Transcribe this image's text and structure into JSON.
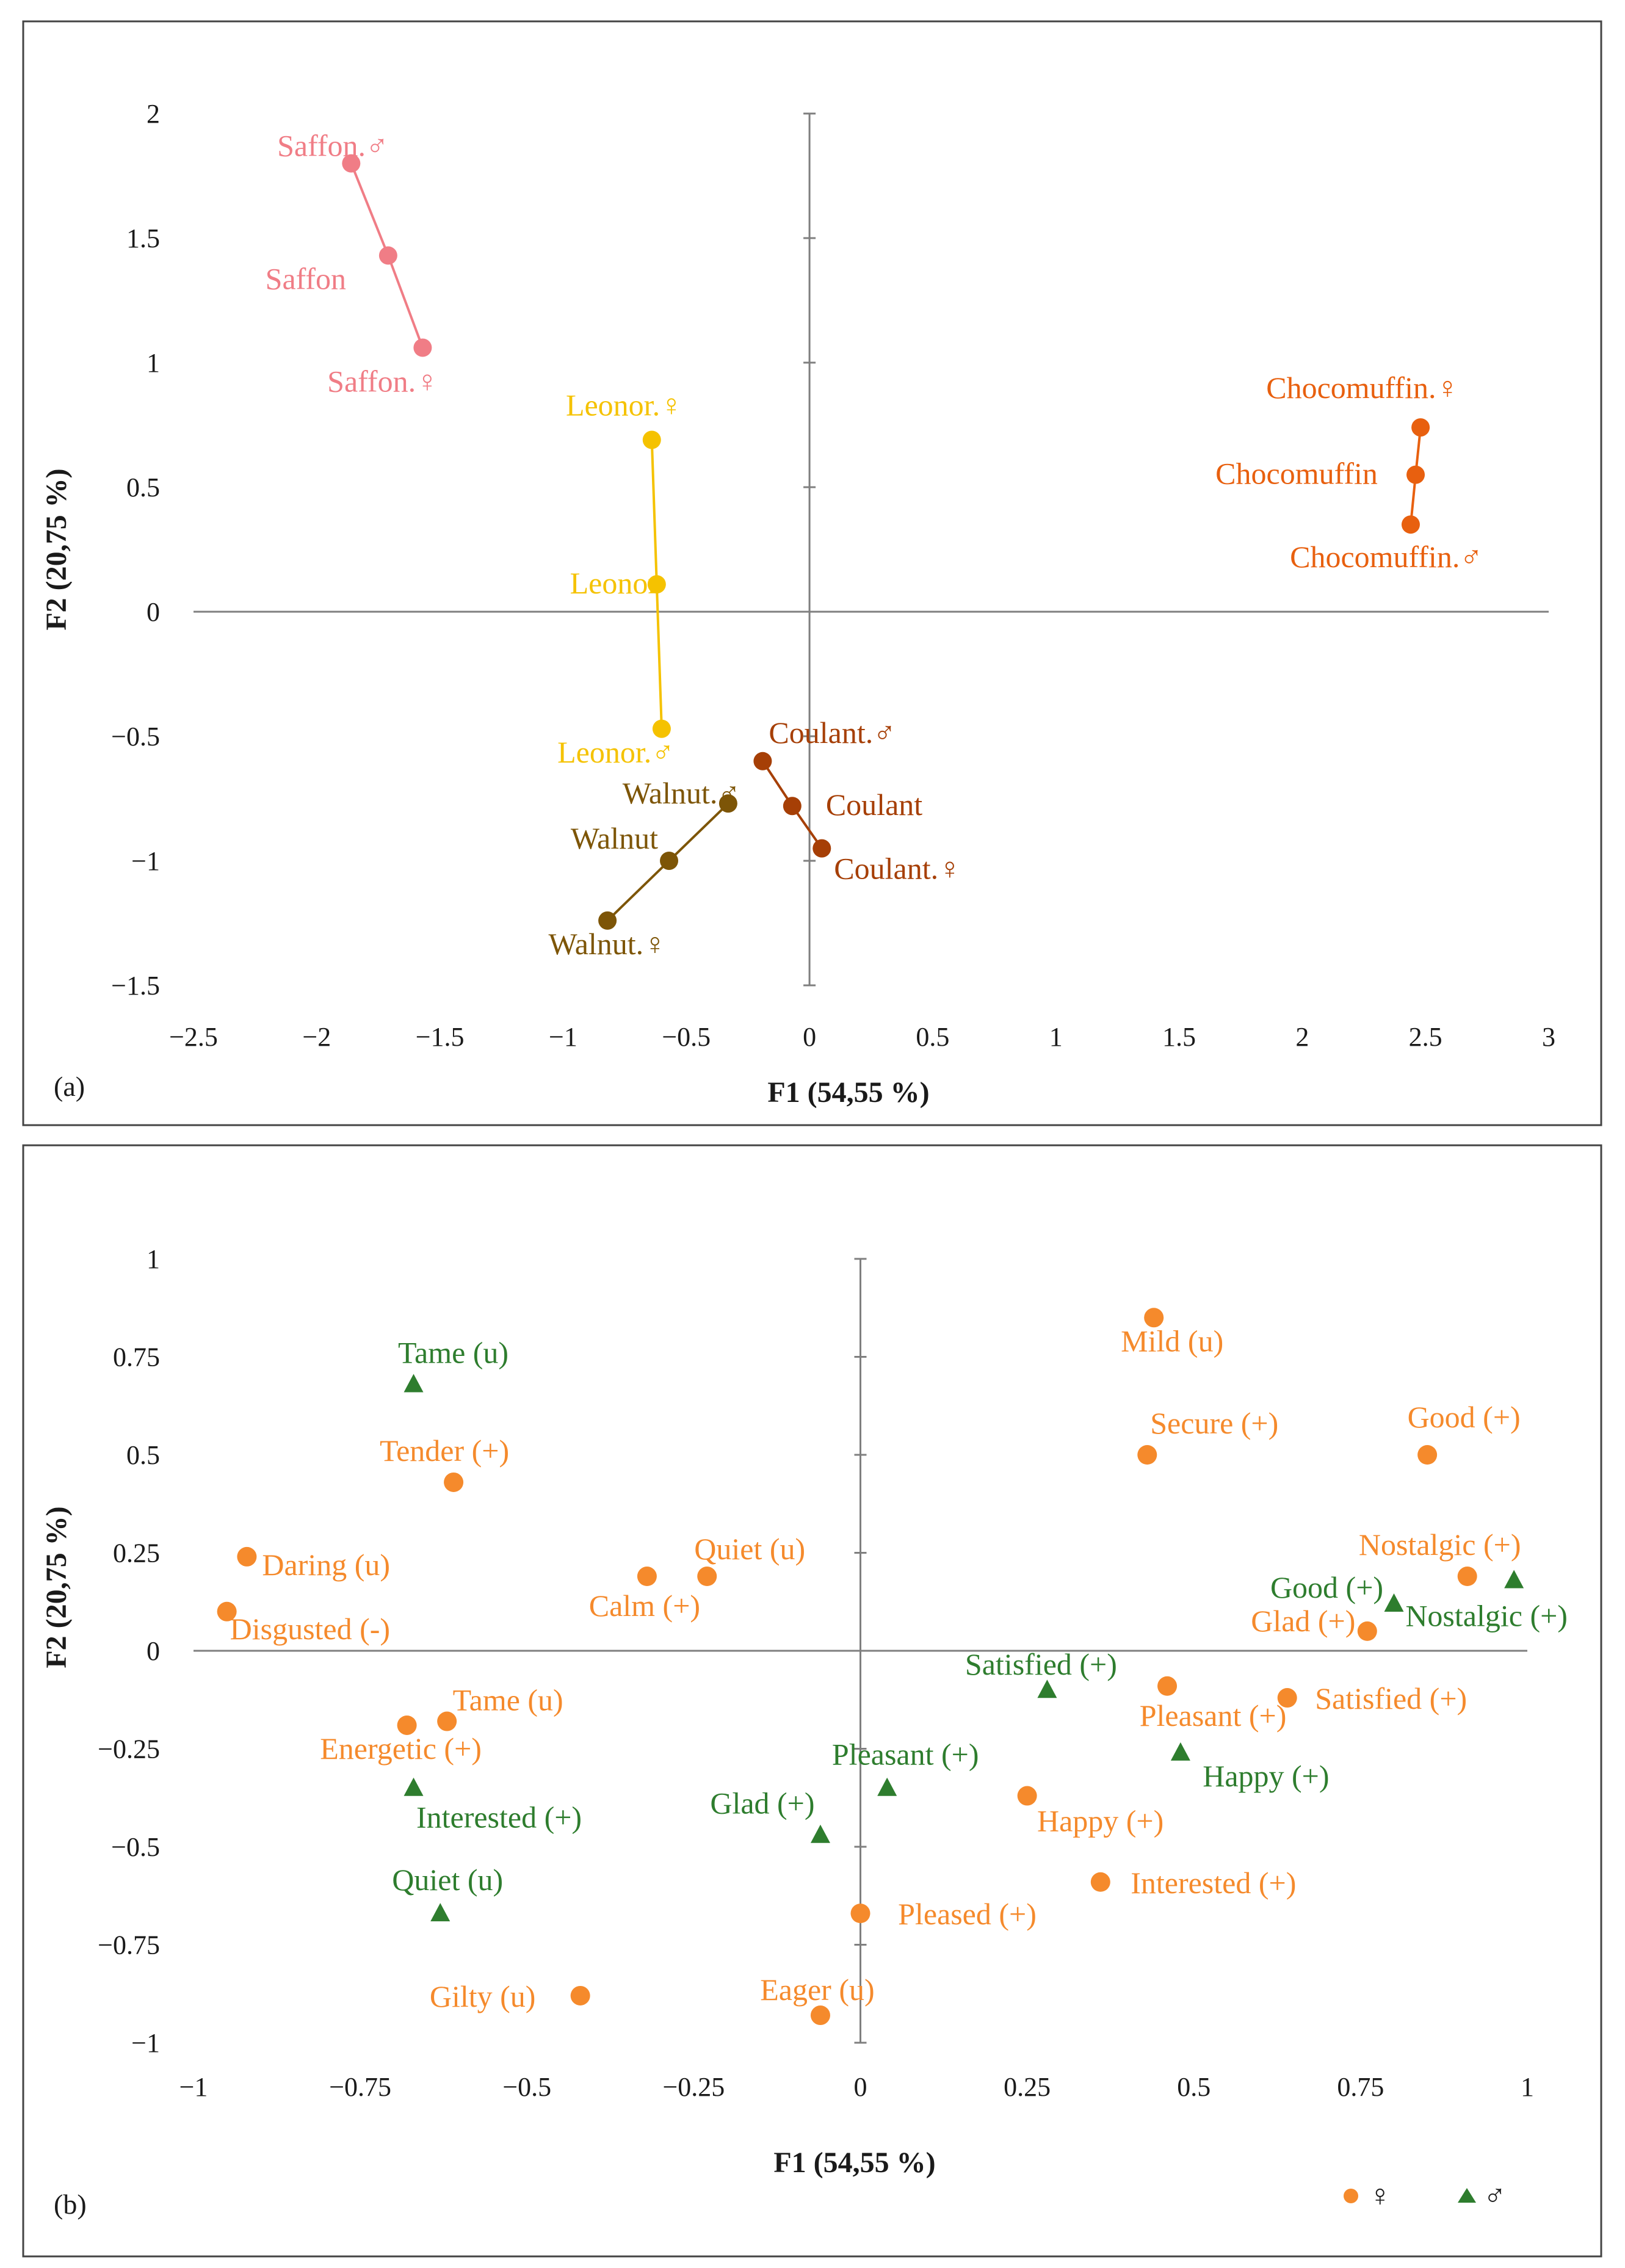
{
  "colors": {
    "saffon": "#f07d86",
    "leonor": "#f5c200",
    "choco": "#e8600f",
    "coulant": "#a63f06",
    "walnut": "#7d5507",
    "female_emotion": "#f58a2c",
    "male_emotion": "#2e7d2e",
    "axis": "#7f7f7f"
  },
  "chart_data": [
    {
      "type": "scatter",
      "panel_tag": "(a)",
      "title": "",
      "xlabel": "F1 (54,55 %)",
      "ylabel": "F2 (20,75 %)",
      "xlim": [
        -2.5,
        3
      ],
      "ylim": [
        -1.5,
        2
      ],
      "grid": false,
      "xticks": [
        "−2.5",
        "−2",
        "−1.5",
        "−1",
        "−0.5",
        "0",
        "0.5",
        "1",
        "1.5",
        "2",
        "2.5",
        "3"
      ],
      "yticks": [
        "−1.5",
        "−1",
        "−0.5",
        "0",
        "0.5",
        "1",
        "1.5",
        "2"
      ],
      "xtick_values": [
        -2.5,
        -2,
        -1.5,
        -1,
        -0.5,
        0,
        0.5,
        1,
        1.5,
        2,
        2.5,
        3
      ],
      "ytick_values": [
        -1.5,
        -1,
        -0.5,
        0,
        0.5,
        1,
        1.5,
        2
      ],
      "series": [
        {
          "name": "Saffon",
          "color_key": "saffon",
          "points": [
            {
              "label": "Saffon.♂",
              "x": -1.86,
              "y": 1.8
            },
            {
              "label": "Saffon",
              "x": -1.71,
              "y": 1.43
            },
            {
              "label": "Saffon.♀",
              "x": -1.57,
              "y": 1.06
            }
          ]
        },
        {
          "name": "Leonor",
          "color_key": "leonor",
          "points": [
            {
              "label": "Leonor.♀",
              "x": -0.64,
              "y": 0.69
            },
            {
              "label": "Leonor",
              "x": -0.62,
              "y": 0.11
            },
            {
              "label": "Leonor.♂",
              "x": -0.6,
              "y": -0.47
            }
          ]
        },
        {
          "name": "Chocomuffin",
          "color_key": "choco",
          "points": [
            {
              "label": "Chocomuffin.♀",
              "x": 2.48,
              "y": 0.74
            },
            {
              "label": "Chocomuffin",
              "x": 2.46,
              "y": 0.55
            },
            {
              "label": "Chocomuffin.♂",
              "x": 2.44,
              "y": 0.35
            }
          ]
        },
        {
          "name": "Coulant",
          "color_key": "coulant",
          "points": [
            {
              "label": "Coulant.♂",
              "x": -0.19,
              "y": -0.6
            },
            {
              "label": "Coulant",
              "x": -0.07,
              "y": -0.78
            },
            {
              "label": "Coulant.♀",
              "x": 0.05,
              "y": -0.95
            }
          ]
        },
        {
          "name": "Walnut",
          "color_key": "walnut",
          "points": [
            {
              "label": "Walnut.♂",
              "x": -0.33,
              "y": -0.77
            },
            {
              "label": "Walnut",
              "x": -0.57,
              "y": -1.0
            },
            {
              "label": "Walnut.♀",
              "x": -0.82,
              "y": -1.24
            }
          ]
        }
      ]
    },
    {
      "type": "scatter",
      "panel_tag": "(b)",
      "title": "",
      "xlabel": "F1 (54,55 %)",
      "ylabel": "F2 (20,75 %)",
      "xlim": [
        -1,
        1
      ],
      "ylim": [
        -1,
        1
      ],
      "grid": false,
      "xticks": [
        "−1",
        "−0.75",
        "−0.5",
        "−0.25",
        "0",
        "0.25",
        "0.5",
        "0.75",
        "1"
      ],
      "yticks": [
        "−1",
        "−0.75",
        "−0.5",
        "−0.25",
        "0",
        "0.25",
        "0.5",
        "0.75",
        "1"
      ],
      "xtick_values": [
        -1,
        -0.75,
        -0.5,
        -0.25,
        0,
        0.25,
        0.5,
        0.75,
        1
      ],
      "ytick_values": [
        -1,
        -0.75,
        -0.5,
        -0.25,
        0,
        0.25,
        0.5,
        0.75,
        1
      ],
      "legend": [
        {
          "symbol": "circle",
          "color_key": "female_emotion",
          "label": "♀"
        },
        {
          "symbol": "triangle",
          "color_key": "male_emotion",
          "label": "♂"
        }
      ],
      "legend_position": "bottom-right",
      "series": [
        {
          "name": "♀",
          "symbol": "circle",
          "color_key": "female_emotion",
          "points": [
            {
              "label": "Mild (u)",
              "x": 0.44,
              "y": 0.85
            },
            {
              "label": "Good (+)",
              "x": 0.85,
              "y": 0.5
            },
            {
              "label": "Secure (+)",
              "x": 0.43,
              "y": 0.5
            },
            {
              "label": "Tender (+)",
              "x": -0.61,
              "y": 0.43
            },
            {
              "label": "Daring (u)",
              "x": -0.92,
              "y": 0.24
            },
            {
              "label": "Quiet (u)",
              "x": -0.23,
              "y": 0.19
            },
            {
              "label": "Calm (+)",
              "x": -0.32,
              "y": 0.19
            },
            {
              "label": "Nostalgic (+)",
              "x": 0.91,
              "y": 0.19
            },
            {
              "label": "Disgusted (-)",
              "x": -0.95,
              "y": 0.1
            },
            {
              "label": "Glad (+)",
              "x": 0.76,
              "y": 0.05
            },
            {
              "label": "Satisfied (+)",
              "x": 0.64,
              "y": -0.12
            },
            {
              "label": "Pleasant (+)",
              "x": 0.46,
              "y": -0.09
            },
            {
              "label": "Tame (u)",
              "x": -0.62,
              "y": -0.18
            },
            {
              "label": "Energetic (+)",
              "x": -0.68,
              "y": -0.19
            },
            {
              "label": "Happy (+)",
              "x": 0.25,
              "y": -0.37
            },
            {
              "label": "Interested (+)",
              "x": 0.36,
              "y": -0.59
            },
            {
              "label": "Pleased (+)",
              "x": 0.0,
              "y": -0.67
            },
            {
              "label": "Gilty (u)",
              "x": -0.42,
              "y": -0.88
            },
            {
              "label": "Eager (u)",
              "x": -0.06,
              "y": -0.93
            }
          ]
        },
        {
          "name": "♂",
          "symbol": "triangle",
          "color_key": "male_emotion",
          "points": [
            {
              "label": "Tame (u)",
              "x": -0.67,
              "y": 0.68
            },
            {
              "label": "Nostalgic (+)",
              "x": 0.98,
              "y": 0.18
            },
            {
              "label": "Good (+)",
              "x": 0.8,
              "y": 0.12
            },
            {
              "label": "Satisfied (+)",
              "x": 0.28,
              "y": -0.1
            },
            {
              "label": "Happy (+)",
              "x": 0.48,
              "y": -0.26
            },
            {
              "label": "Interested (+)",
              "x": -0.67,
              "y": -0.35
            },
            {
              "label": "Pleasant (+)",
              "x": 0.04,
              "y": -0.35
            },
            {
              "label": "Glad (+)",
              "x": -0.06,
              "y": -0.47
            },
            {
              "label": "Quiet (u)",
              "x": -0.63,
              "y": -0.67
            }
          ]
        }
      ]
    }
  ]
}
